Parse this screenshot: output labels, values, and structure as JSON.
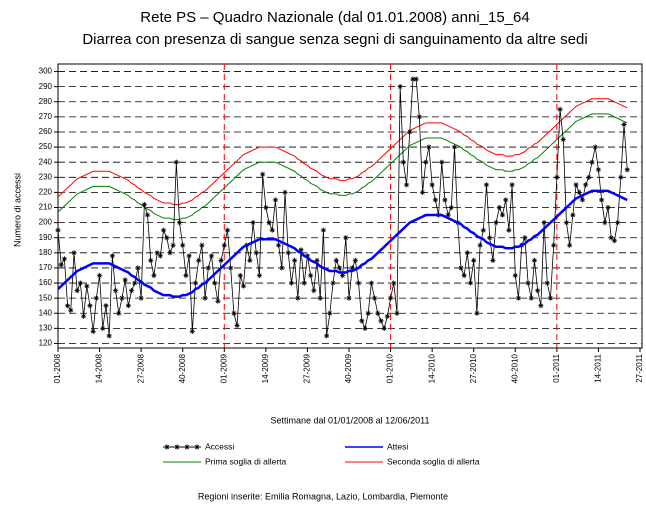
{
  "chart_data": {
    "type": "line",
    "title": "Rete PS – Quadro Nazionale (dal 01.01.2008) anni_15_64",
    "subtitle": "Diarrea con presenza di sangue senza segni di sanguinamento da altre sedi",
    "y_label": "Numero di accessi",
    "x_label": "Settimane dal 01/01/2008 al 12/06/2011",
    "footnote": "Regioni inserite: Emilia Romagna, Lazio, Lombardia, Piemonte",
    "categories": [
      "01-2008",
      null,
      null,
      null,
      null,
      null,
      null,
      null,
      null,
      null,
      null,
      null,
      null,
      "14-2008",
      null,
      null,
      null,
      null,
      null,
      null,
      null,
      null,
      null,
      null,
      null,
      null,
      "27-2008",
      null,
      null,
      null,
      null,
      null,
      null,
      null,
      null,
      null,
      null,
      null,
      null,
      "40-2008",
      null,
      null,
      null,
      null,
      null,
      null,
      null,
      null,
      null,
      null,
      null,
      null,
      "01-2009",
      null,
      null,
      null,
      null,
      null,
      null,
      null,
      null,
      null,
      null,
      null,
      null,
      "14-2009",
      null,
      null,
      null,
      null,
      null,
      null,
      null,
      null,
      null,
      null,
      null,
      null,
      "27-2009",
      null,
      null,
      null,
      null,
      null,
      null,
      null,
      null,
      null,
      null,
      null,
      null,
      "40-2009",
      null,
      null,
      null,
      null,
      null,
      null,
      null,
      null,
      null,
      null,
      null,
      null,
      "01-2010",
      null,
      null,
      null,
      null,
      null,
      null,
      null,
      null,
      null,
      null,
      null,
      null,
      "14-2010",
      null,
      null,
      null,
      null,
      null,
      null,
      null,
      null,
      null,
      null,
      null,
      null,
      "27-2010",
      null,
      null,
      null,
      null,
      null,
      null,
      null,
      null,
      null,
      null,
      null,
      null,
      "40-2010",
      null,
      null,
      null,
      null,
      null,
      null,
      null,
      null,
      null,
      null,
      null,
      null,
      "01-2011",
      null,
      null,
      null,
      null,
      null,
      null,
      null,
      null,
      null,
      null,
      null,
      null,
      "14-2011",
      null,
      null,
      null,
      null,
      null,
      null,
      null,
      null,
      null,
      null,
      null,
      null,
      "27-2011"
    ],
    "series": [
      {
        "name": "Accessi",
        "color": "#000000",
        "marker": "asterisk",
        "values": [
          195,
          172,
          176,
          145,
          142,
          180,
          155,
          160,
          138,
          158,
          145,
          128,
          150,
          165,
          130,
          145,
          125,
          178,
          155,
          140,
          150,
          162,
          145,
          155,
          160,
          170,
          150,
          212,
          205,
          175,
          165,
          180,
          178,
          195,
          190,
          180,
          185,
          240,
          200,
          185,
          165,
          178,
          128,
          160,
          175,
          185,
          150,
          170,
          178,
          160,
          148,
          175,
          185,
          195,
          170,
          140,
          132,
          165,
          158,
          185,
          175,
          200,
          180,
          165,
          232,
          210,
          200,
          195,
          215,
          185,
          170,
          220,
          180,
          160,
          175,
          150,
          182,
          160,
          178,
          165,
          155,
          175,
          150,
          195,
          125,
          140,
          160,
          175,
          170,
          165,
          190,
          150,
          170,
          175,
          160,
          135,
          130,
          140,
          160,
          150,
          140,
          135,
          130,
          138,
          150,
          160,
          140,
          290,
          240,
          225,
          260,
          295,
          295,
          270,
          220,
          240,
          250,
          225,
          215,
          205,
          240,
          215,
          205,
          210,
          250,
          200,
          170,
          165,
          180,
          160,
          175,
          140,
          185,
          195,
          225,
          190,
          175,
          200,
          210,
          205,
          215,
          195,
          225,
          165,
          150,
          185,
          190,
          160,
          150,
          175,
          155,
          145,
          200,
          160,
          150,
          185,
          230,
          275,
          255,
          200,
          185,
          205,
          225,
          220,
          215,
          225,
          230,
          240,
          250,
          235,
          215,
          200,
          210,
          190,
          188,
          200,
          230,
          265,
          235,
          null,
          null,
          null,
          null
        ]
      },
      {
        "name": "Attesi",
        "color": "#0000ff",
        "width": 2.5,
        "values": [
          156,
          158,
          160,
          162,
          164,
          166,
          168,
          169,
          170,
          171,
          172,
          173,
          173,
          173,
          173,
          173,
          173,
          172,
          171,
          170,
          169,
          168,
          167,
          165,
          164,
          162,
          161,
          159,
          158,
          157,
          155,
          154,
          153,
          152,
          152,
          152,
          151,
          151,
          151,
          152,
          152,
          153,
          154,
          156,
          157,
          159,
          160,
          162,
          164,
          166,
          168,
          170,
          172,
          174,
          176,
          178,
          180,
          182,
          184,
          185,
          186,
          187,
          188,
          189,
          189,
          189,
          189,
          189,
          189,
          188,
          187,
          186,
          185,
          184,
          183,
          181,
          180,
          178,
          177,
          175,
          174,
          173,
          171,
          170,
          169,
          168,
          168,
          168,
          167,
          167,
          167,
          168,
          168,
          169,
          170,
          172,
          173,
          175,
          176,
          178,
          180,
          182,
          184,
          186,
          188,
          190,
          192,
          194,
          196,
          198,
          200,
          201,
          202,
          203,
          204,
          205,
          205,
          205,
          205,
          205,
          205,
          204,
          203,
          202,
          201,
          200,
          199,
          197,
          196,
          194,
          193,
          191,
          190,
          189,
          187,
          186,
          185,
          184,
          184,
          184,
          183,
          183,
          183,
          184,
          184,
          185,
          186,
          188,
          189,
          191,
          192,
          194,
          196,
          198,
          200,
          202,
          204,
          206,
          208,
          210,
          212,
          214,
          216,
          217,
          218,
          219,
          220,
          221,
          221,
          221,
          221,
          221,
          221,
          220,
          219,
          218,
          217,
          216,
          215,
          null,
          null,
          null,
          null
        ]
      },
      {
        "name": "Prima soglia di allerta",
        "color": "#008000",
        "width": 1,
        "values": [
          207,
          209,
          211,
          213,
          215,
          217,
          219,
          220,
          221,
          222,
          223,
          224,
          224,
          224,
          224,
          224,
          224,
          223,
          222,
          221,
          220,
          219,
          218,
          216,
          215,
          213,
          212,
          210,
          209,
          208,
          206,
          205,
          204,
          203,
          203,
          203,
          202,
          202,
          202,
          203,
          203,
          204,
          205,
          207,
          208,
          210,
          211,
          213,
          215,
          217,
          219,
          221,
          223,
          225,
          227,
          229,
          231,
          233,
          235,
          236,
          237,
          238,
          239,
          240,
          240,
          240,
          240,
          240,
          240,
          239,
          238,
          237,
          236,
          235,
          234,
          232,
          231,
          229,
          228,
          226,
          225,
          224,
          222,
          221,
          220,
          219,
          219,
          219,
          218,
          218,
          218,
          219,
          219,
          220,
          221,
          223,
          224,
          226,
          227,
          229,
          231,
          233,
          235,
          237,
          239,
          241,
          243,
          245,
          247,
          249,
          251,
          252,
          253,
          254,
          255,
          256,
          256,
          256,
          256,
          256,
          256,
          255,
          254,
          253,
          252,
          251,
          250,
          248,
          247,
          245,
          244,
          242,
          241,
          240,
          238,
          237,
          236,
          235,
          235,
          235,
          234,
          234,
          234,
          235,
          235,
          236,
          237,
          239,
          240,
          242,
          243,
          245,
          247,
          249,
          251,
          253,
          255,
          257,
          259,
          261,
          263,
          265,
          267,
          268,
          269,
          270,
          271,
          272,
          272,
          272,
          272,
          272,
          272,
          271,
          270,
          269,
          268,
          267,
          266,
          null,
          null,
          null,
          null
        ]
      },
      {
        "name": "Seconda soglia di allerta",
        "color": "#ff0000",
        "width": 1,
        "values": [
          217,
          219,
          221,
          223,
          225,
          227,
          229,
          230,
          231,
          232,
          233,
          234,
          234,
          234,
          234,
          234,
          234,
          233,
          232,
          231,
          230,
          229,
          228,
          226,
          225,
          223,
          222,
          220,
          219,
          218,
          216,
          215,
          214,
          213,
          213,
          213,
          212,
          212,
          212,
          213,
          213,
          214,
          215,
          217,
          218,
          220,
          221,
          223,
          225,
          227,
          229,
          231,
          233,
          235,
          237,
          239,
          241,
          243,
          245,
          246,
          247,
          248,
          249,
          250,
          250,
          250,
          250,
          250,
          250,
          249,
          248,
          247,
          246,
          245,
          244,
          242,
          241,
          239,
          238,
          236,
          235,
          234,
          232,
          231,
          230,
          229,
          229,
          229,
          228,
          228,
          228,
          229,
          229,
          230,
          231,
          233,
          234,
          236,
          237,
          239,
          241,
          243,
          245,
          247,
          249,
          251,
          253,
          255,
          257,
          259,
          261,
          262,
          263,
          264,
          265,
          266,
          266,
          266,
          266,
          266,
          266,
          265,
          264,
          263,
          262,
          261,
          260,
          258,
          257,
          255,
          254,
          252,
          251,
          250,
          248,
          247,
          246,
          245,
          245,
          245,
          244,
          244,
          244,
          245,
          245,
          246,
          247,
          249,
          250,
          252,
          253,
          255,
          257,
          259,
          261,
          263,
          265,
          267,
          269,
          271,
          273,
          275,
          277,
          278,
          279,
          280,
          281,
          282,
          282,
          282,
          282,
          282,
          282,
          281,
          280,
          279,
          278,
          277,
          276,
          null,
          null,
          null,
          null
        ]
      }
    ],
    "vlines": [
      52,
      104,
      156
    ],
    "vline_color": "#ff0000",
    "ylim": [
      117,
      305
    ],
    "yticks": [
      120,
      130,
      140,
      150,
      160,
      170,
      180,
      190,
      200,
      210,
      220,
      230,
      240,
      250,
      260,
      270,
      280,
      290,
      300
    ],
    "grid": true
  }
}
